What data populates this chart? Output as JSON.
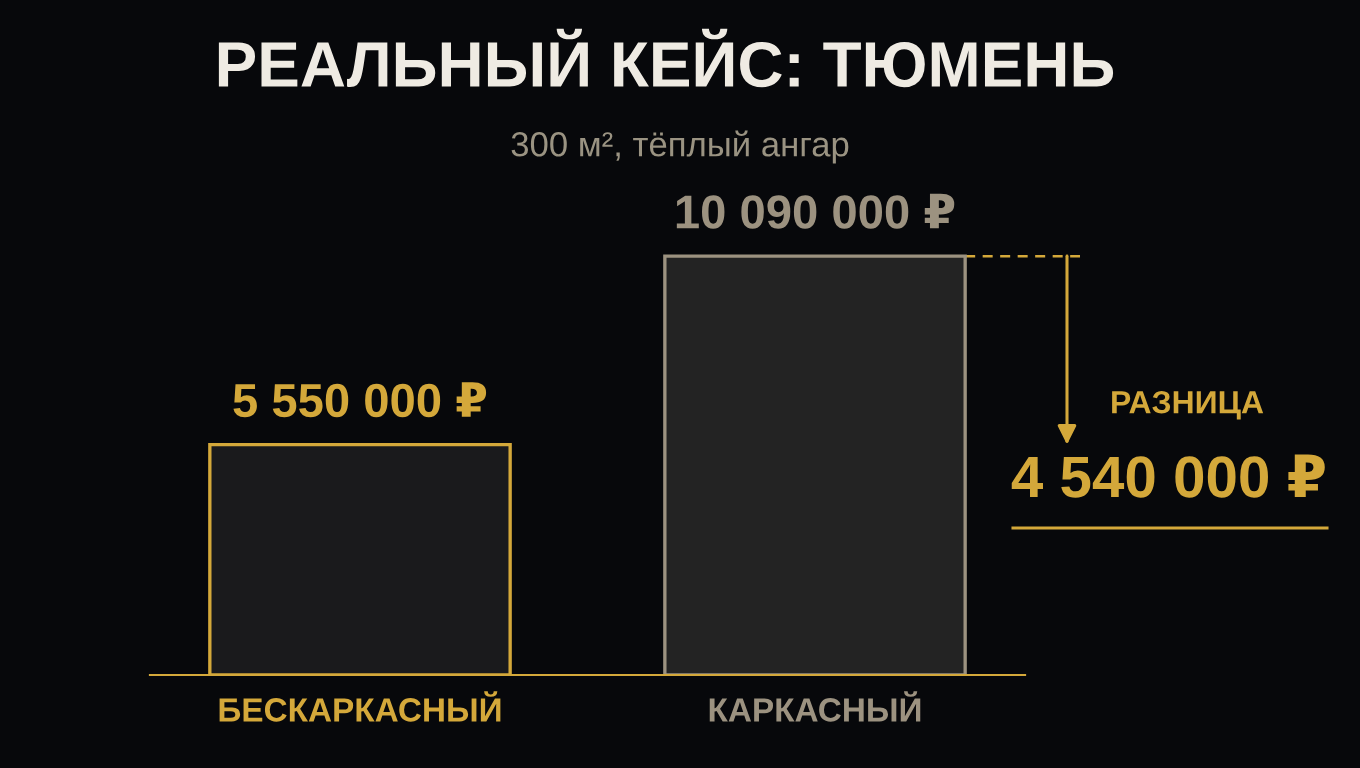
{
  "chart_data": {
    "type": "bar",
    "title": "РЕАЛЬНЫЙ КЕЙС: ТЮМЕНЬ",
    "subtitle": "300 м², тёплый ангар",
    "categories": [
      "БЕСКАРКАСНЫЙ",
      "КАРКАСНЫЙ"
    ],
    "values": [
      5550000,
      10090000
    ],
    "colors": [
      "#d4a83a",
      "#9c9280"
    ],
    "value_labels": [
      "5 550 000 ₽",
      "10 090 000 ₽"
    ],
    "annotations": [
      "РАЗНИЦА",
      "4 540 000 ₽"
    ],
    "tick_labels": "x",
    "grid": false
  }
}
